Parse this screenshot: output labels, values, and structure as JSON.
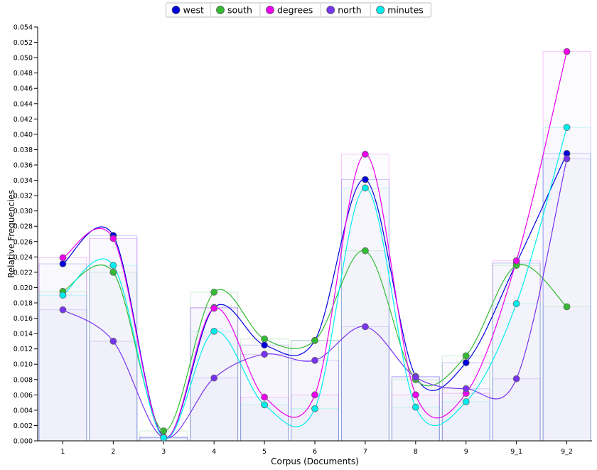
{
  "chart_data": {
    "type": "line",
    "title": "",
    "xlabel": "Corpus (Documents)",
    "ylabel": "Relative Frequencies",
    "categories": [
      "1",
      "2",
      "3",
      "4",
      "5",
      "6",
      "7",
      "8",
      "9",
      "9_1",
      "9_2"
    ],
    "ylim": [
      0,
      0.054
    ],
    "yticks": [
      "0.000",
      "0.002",
      "0.004",
      "0.006",
      "0.008",
      "0.010",
      "0.012",
      "0.014",
      "0.016",
      "0.018",
      "0.020",
      "0.022",
      "0.024",
      "0.026",
      "0.028",
      "0.030",
      "0.032",
      "0.034",
      "0.036",
      "0.038",
      "0.040",
      "0.042",
      "0.044",
      "0.046",
      "0.048",
      "0.050",
      "0.052",
      "0.054"
    ],
    "legend_position": "top-center",
    "grid": false,
    "smooth_lines": true,
    "background_bars": true,
    "series": [
      {
        "name": "west",
        "color": "#0000dd",
        "values": [
          0.0231,
          0.0268,
          0.0005,
          0.0174,
          0.0125,
          0.0131,
          0.0341,
          0.0084,
          0.0102,
          0.0232,
          0.0375
        ]
      },
      {
        "name": "south",
        "color": "#33bb33",
        "values": [
          0.0195,
          0.022,
          0.0013,
          0.0194,
          0.0133,
          0.0131,
          0.0248,
          0.008,
          0.0111,
          0.0229,
          0.0175
        ]
      },
      {
        "name": "degrees",
        "color": "#ee00ee",
        "values": [
          0.0239,
          0.0264,
          0.0004,
          0.0173,
          0.0057,
          0.006,
          0.0374,
          0.006,
          0.0062,
          0.0235,
          0.0508
        ]
      },
      {
        "name": "north",
        "color": "#7733ee",
        "values": [
          0.0171,
          0.013,
          0.0004,
          0.0082,
          0.0113,
          0.0105,
          0.0149,
          0.0083,
          0.0068,
          0.0081,
          0.0368
        ]
      },
      {
        "name": "minutes",
        "color": "#00eeee",
        "values": [
          0.019,
          0.0229,
          0.0004,
          0.0143,
          0.0047,
          0.0042,
          0.033,
          0.0044,
          0.0051,
          0.0179,
          0.0409
        ]
      }
    ]
  }
}
